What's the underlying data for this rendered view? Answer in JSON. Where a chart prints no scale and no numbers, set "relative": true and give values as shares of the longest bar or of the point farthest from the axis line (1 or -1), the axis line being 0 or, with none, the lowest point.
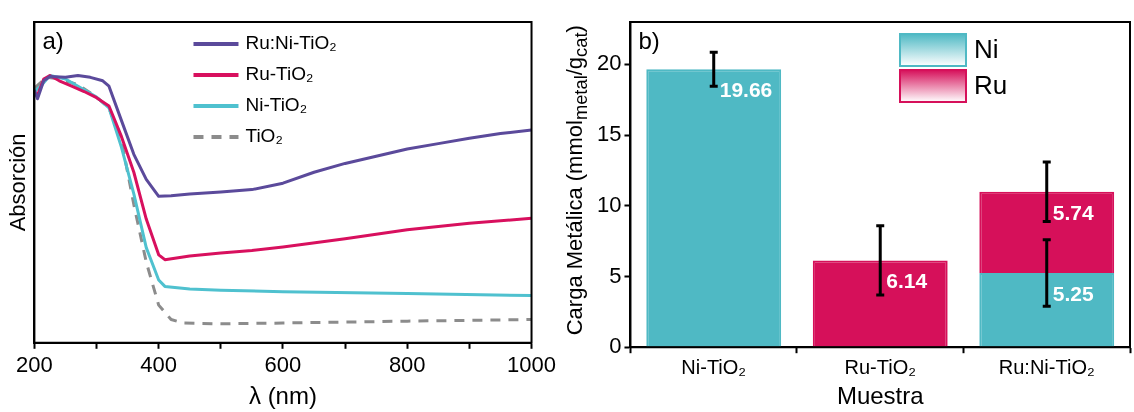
{
  "chart_data": [
    {
      "type": "line",
      "relative": true,
      "xlabel": "λ (nm)",
      "ylabel": "Absorción",
      "annotations": [
        "a)"
      ],
      "legend": "top",
      "grid": false,
      "marker": "none",
      "line_style": "solid",
      "xlim": [
        200,
        1000
      ],
      "xticks": [
        200,
        {
          "value": 300,
          "label": null
        },
        400,
        {
          "value": 500,
          "label": null
        },
        600,
        {
          "value": 700,
          "label": null
        },
        800,
        {
          "value": 900,
          "label": null
        },
        1000
      ],
      "series": [
        {
          "name": "Ru:Ni-TiO₂",
          "color": "#5b4a9b",
          "x": [
            200,
            205,
            215,
            225,
            250,
            270,
            290,
            310,
            320,
            340,
            360,
            380,
            400,
            420,
            450,
            500,
            550,
            600,
            650,
            700,
            750,
            800,
            850,
            900,
            950,
            1000
          ],
          "values": [
            0.946,
            0.913,
            0.98,
            0.996,
            0.993,
            1.0,
            0.993,
            0.98,
            0.96,
            0.832,
            0.705,
            0.611,
            0.548,
            0.55,
            0.557,
            0.564,
            0.573,
            0.597,
            0.638,
            0.671,
            0.698,
            0.725,
            0.745,
            0.765,
            0.783,
            0.796
          ]
        },
        {
          "name": "Ru-TiO₂",
          "color": "#d8105e",
          "x": [
            200,
            205,
            215,
            225,
            240,
            260,
            280,
            300,
            320,
            340,
            360,
            380,
            400,
            410,
            450,
            500,
            550,
            600,
            700,
            800,
            900,
            1000
          ],
          "values": [
            0.933,
            0.926,
            0.987,
            1.0,
            0.98,
            0.96,
            0.94,
            0.917,
            0.886,
            0.772,
            0.638,
            0.463,
            0.329,
            0.311,
            0.325,
            0.336,
            0.345,
            0.358,
            0.389,
            0.423,
            0.447,
            0.466
          ]
        },
        {
          "name": "Ni-TiO₂",
          "color": "#4fc1cf",
          "x": [
            200,
            210,
            225,
            250,
            280,
            300,
            320,
            340,
            360,
            380,
            400,
            410,
            450,
            500,
            600,
            800,
            1000
          ],
          "values": [
            0.94,
            0.96,
            1.0,
            0.987,
            0.946,
            0.919,
            0.879,
            0.732,
            0.557,
            0.356,
            0.235,
            0.211,
            0.201,
            0.197,
            0.191,
            0.184,
            0.177
          ]
        },
        {
          "name": "TiO₂",
          "color": "#8c8c8c",
          "line_style": "dashed",
          "x": [
            200,
            220,
            240,
            270,
            300,
            320,
            340,
            360,
            380,
            400,
            420,
            440,
            500,
            600,
            800,
            1000
          ],
          "values": [
            0.953,
            0.993,
            0.987,
            0.966,
            0.919,
            0.879,
            0.758,
            0.517,
            0.302,
            0.141,
            0.087,
            0.074,
            0.071,
            0.074,
            0.081,
            0.087
          ]
        }
      ]
    },
    {
      "type": "bar",
      "stacked": true,
      "xlabel": "Muestra",
      "ylabel": "Carga Metálica (mmol$_{metal}$/g$_{cat}$)",
      "annotations": [
        "b)"
      ],
      "legend": "top right",
      "grid": false,
      "data_labels": true,
      "categories": [
        "Ni-TiO₂",
        "Ru-TiO₂",
        "Ru:Ni-TiO₂"
      ],
      "ylim": [
        0,
        23
      ],
      "yticks": [
        0,
        5,
        10,
        15,
        20
      ],
      "series": [
        {
          "name": "Ni",
          "color": "#4fb9c4",
          "values": [
            19.66,
            null,
            5.25
          ],
          "errors": [
            1.2,
            null,
            2.35
          ]
        },
        {
          "name": "Ru",
          "color": "#d6105a",
          "values": [
            null,
            6.14,
            5.74
          ],
          "errors": [
            null,
            2.45,
            2.1
          ]
        }
      ]
    }
  ]
}
